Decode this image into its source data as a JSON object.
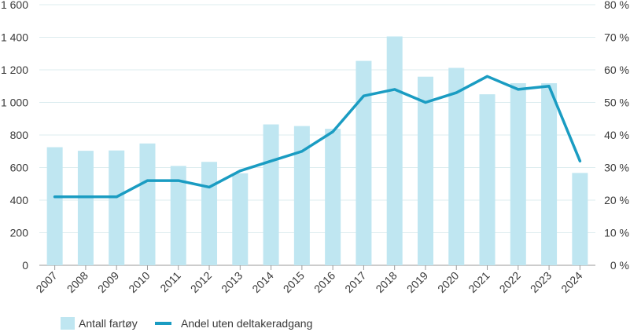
{
  "chart_data": {
    "type": "bar",
    "categories": [
      "2007",
      "2008",
      "2009",
      "2010",
      "2011",
      "2012",
      "2013",
      "2014",
      "2015",
      "2016",
      "2017",
      "2018",
      "2019",
      "2020",
      "2021",
      "2022",
      "2023",
      "2024"
    ],
    "series": [
      {
        "name": "Antall fartøy",
        "type": "bar",
        "axis": "left",
        "color": "#bfe6f1",
        "values": [
          725,
          703,
          705,
          748,
          610,
          635,
          565,
          865,
          855,
          838,
          1255,
          1405,
          1158,
          1212,
          1050,
          1118,
          1118,
          567
        ]
      },
      {
        "name": "Andel uten deltakeradgang",
        "type": "line",
        "axis": "right",
        "color": "#1a9cc2",
        "values": [
          21,
          21,
          21,
          26,
          26,
          24,
          29,
          32,
          35,
          41,
          52,
          54,
          50,
          53,
          58,
          54,
          55,
          32
        ]
      }
    ],
    "y_left": {
      "range": [
        0,
        1600
      ],
      "ticks": [
        0,
        200,
        400,
        600,
        800,
        1000,
        1200,
        1400,
        1600
      ],
      "tick_labels": [
        "0",
        "200",
        "400",
        "600",
        "800",
        "1 000",
        "1 200",
        "1 400",
        "1 600"
      ]
    },
    "y_right": {
      "range": [
        0,
        80
      ],
      "ticks": [
        0,
        10,
        20,
        30,
        40,
        50,
        60,
        70,
        80
      ],
      "tick_labels": [
        "0 %",
        "10 %",
        "20 %",
        "30 %",
        "40 %",
        "50 %",
        "60 %",
        "70 %",
        "80 %"
      ]
    },
    "grid": true,
    "legend": "bottom-left"
  }
}
